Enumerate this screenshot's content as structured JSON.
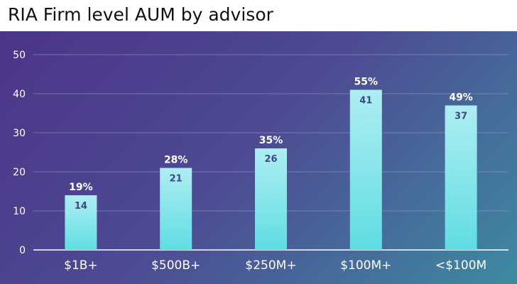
{
  "title": "RIA Firm level AUM by advisor",
  "chart_data": {
    "type": "bar",
    "categories": [
      "$1B+",
      "$500B+",
      "$250M+",
      "$100M+",
      "<$100M"
    ],
    "values": [
      14,
      21,
      26,
      41,
      37
    ],
    "percent_labels": [
      "19%",
      "28%",
      "35%",
      "55%",
      "49%"
    ],
    "ylim": [
      0,
      50
    ],
    "yticks": [
      0,
      10,
      20,
      30,
      40,
      50
    ],
    "grid": true,
    "xlabel": "",
    "ylabel": "",
    "colors": {
      "bar_top": "#aeeef2",
      "bar_bottom": "#5fdde2",
      "gridline": "#9c9cd0",
      "tick_label": "#ffffff",
      "value_label": "#3a4a82",
      "percent_label": "#ffffff"
    }
  }
}
